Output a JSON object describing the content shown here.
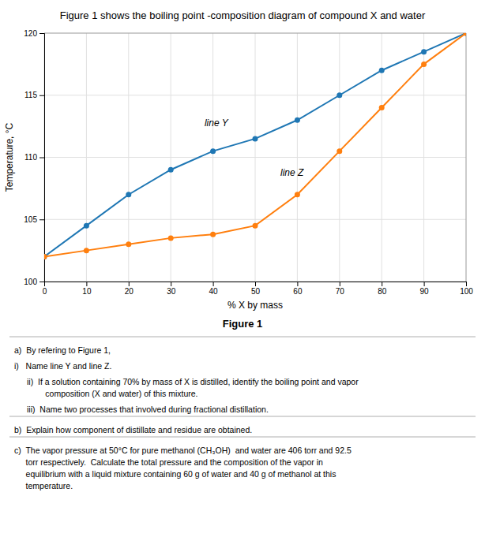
{
  "chart_data": {
    "type": "line",
    "title": "Figure 1 shows the boiling point -composition diagram of compound X and water",
    "x_label": "% X by mass",
    "y_label": "Temperature, °C",
    "x": [
      0,
      10,
      20,
      30,
      40,
      50,
      60,
      70,
      80,
      90,
      100
    ],
    "series": [
      {
        "values": [
          102,
          104.5,
          107,
          109,
          110.5,
          111.5,
          113,
          115,
          117,
          118.5,
          120
        ],
        "marker": "circle",
        "line_style": "solid"
      },
      {
        "values": [
          102,
          102.5,
          103,
          103.5,
          103.8,
          104.5,
          107,
          110.5,
          114,
          117.5,
          120
        ],
        "marker": "circle",
        "line_style": "solid"
      }
    ],
    "annotations": [
      {
        "text": "line Y",
        "x": 38,
        "y": 112.5
      },
      {
        "text": "line Z",
        "x": 56,
        "y": 108.5
      }
    ],
    "xlim": [
      0,
      100
    ],
    "ylim": [
      100,
      120
    ],
    "xticks": [
      0,
      10,
      20,
      30,
      40,
      50,
      60,
      70,
      80,
      90,
      100
    ],
    "yticks": [
      100,
      105,
      110,
      115,
      120
    ],
    "grid": true
  },
  "page": {
    "figure_label": "Figure 1",
    "questions": [
      "a)  By refering to Figure 1,",
      "i)   Name line Y and line Z.",
      "ii)  If a solution containing 70% by mass of X is distilled, identify the boiling point and vapor\n        composition (X and water) of this mixture.",
      "iii)  Name two processes that involved during fractional distillation.",
      "b)  Explain how component of distillate and residue are obtained.",
      "c)  The vapor pressure at 50°C for pure methanol (CH₃OH)  and water are 406 torr and 92.5\n     torr respectively.  Calculate the total pressure and the composition of the vapor in\n     equilibrium with a liquid mixture containing 60 g of water and 40 g of methanol at this\n     temperature."
    ]
  }
}
